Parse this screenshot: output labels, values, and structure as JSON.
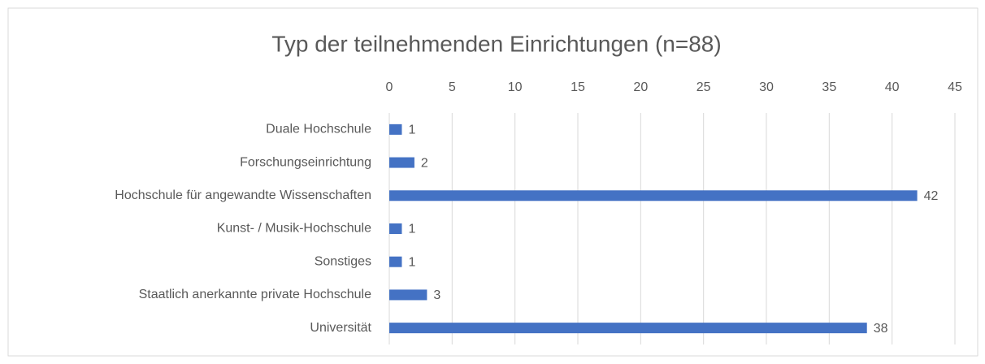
{
  "chart_data": {
    "type": "bar",
    "orientation": "horizontal",
    "title": "Typ der teilnehmenden Einrichtungen (n=88)",
    "categories": [
      "Duale Hochschule",
      "Forschungseinrichtung",
      "Hochschule für angewandte Wissenschaften",
      "Kunst- / Musik-Hochschule",
      "Sonstiges",
      "Staatlich anerkannte private Hochschule",
      "Universität"
    ],
    "values": [
      1,
      2,
      42,
      1,
      1,
      3,
      38
    ],
    "color": "#4472c4",
    "xlim": [
      0,
      45
    ],
    "xticks": [
      0,
      5,
      10,
      15,
      20,
      25,
      30,
      35,
      40,
      45
    ],
    "grid": true
  }
}
